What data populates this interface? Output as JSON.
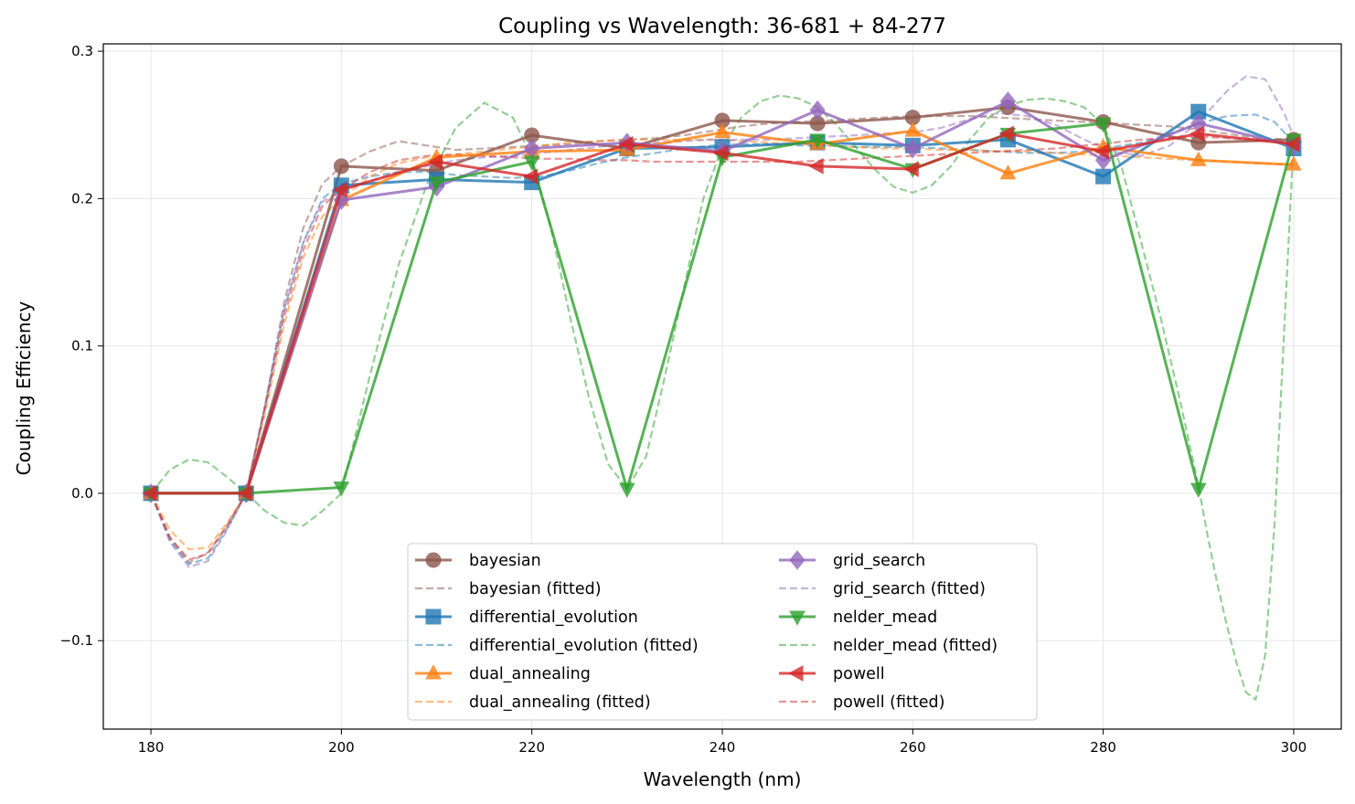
{
  "chart_data": {
    "type": "line",
    "title": "Coupling vs Wavelength: 36-681 + 84-277",
    "xlabel": "Wavelength (nm)",
    "ylabel": "Coupling Efficiency",
    "xlim": [
      175,
      305
    ],
    "ylim": [
      -0.16,
      0.305
    ],
    "xticks": [
      180,
      200,
      220,
      240,
      260,
      280,
      300
    ],
    "xtick_labels": [
      "180",
      "200",
      "220",
      "240",
      "260",
      "280",
      "300"
    ],
    "yticks": [
      -0.1,
      0.0,
      0.1,
      0.2,
      0.3
    ],
    "ytick_labels": [
      "−0.1",
      "0.0",
      "0.1",
      "0.2",
      "0.3"
    ],
    "grid": true,
    "legend_position": "lower-center",
    "x": [
      180,
      190,
      200,
      210,
      220,
      230,
      240,
      250,
      260,
      270,
      280,
      290,
      300
    ],
    "series": [
      {
        "name": "bayesian",
        "color": "#8c564b",
        "marker": "circle",
        "values": [
          0.0,
          0.0,
          0.222,
          0.219,
          0.243,
          0.234,
          0.253,
          0.251,
          0.255,
          0.262,
          0.252,
          0.238,
          0.24
        ]
      },
      {
        "name": "differential_evolution",
        "color": "#1f77b4",
        "marker": "square",
        "values": [
          0.0,
          0.0,
          0.209,
          0.213,
          0.211,
          0.234,
          0.235,
          0.238,
          0.236,
          0.24,
          0.215,
          0.259,
          0.234
        ]
      },
      {
        "name": "dual_annealing",
        "color": "#ff7f0e",
        "marker": "triangle-up",
        "values": [
          0.0,
          0.0,
          0.199,
          0.228,
          0.232,
          0.233,
          0.245,
          0.237,
          0.246,
          0.217,
          0.235,
          0.226,
          0.223
        ]
      },
      {
        "name": "grid_search",
        "color": "#9467bd",
        "marker": "diamond",
        "values": [
          0.0,
          0.0,
          0.199,
          0.208,
          0.234,
          0.238,
          0.232,
          0.26,
          0.234,
          0.266,
          0.226,
          0.251,
          0.236
        ]
      },
      {
        "name": "nelder_mead",
        "color": "#2ca02c",
        "marker": "triangle-down",
        "values": [
          0.0,
          0.0,
          0.004,
          0.211,
          0.225,
          0.003,
          0.228,
          0.24,
          0.22,
          0.244,
          0.251,
          0.003,
          0.24
        ]
      },
      {
        "name": "powell",
        "color": "#d62728",
        "marker": "triangle-left",
        "values": [
          0.0,
          0.0,
          0.206,
          0.225,
          0.215,
          0.237,
          0.231,
          0.222,
          0.22,
          0.244,
          0.232,
          0.244,
          0.237
        ]
      }
    ],
    "fitted_series": [
      {
        "name": "bayesian (fitted)",
        "color": "#8c564b",
        "x": [
          180,
          182,
          184,
          186,
          188,
          190,
          192,
          194,
          196,
          198,
          200,
          203,
          206,
          209,
          212,
          215,
          218,
          221,
          224,
          227,
          230,
          233,
          236,
          239,
          242,
          245,
          248,
          251,
          254,
          257,
          260,
          263,
          266,
          269,
          272,
          275,
          278,
          281,
          284,
          287,
          290,
          293,
          296,
          300
        ],
        "y": [
          0.0,
          -0.03,
          -0.047,
          -0.04,
          -0.022,
          0.0,
          0.06,
          0.13,
          0.18,
          0.21,
          0.222,
          0.232,
          0.239,
          0.236,
          0.233,
          0.234,
          0.235,
          0.236,
          0.237,
          0.239,
          0.24,
          0.241,
          0.243,
          0.246,
          0.249,
          0.251,
          0.252,
          0.253,
          0.254,
          0.255,
          0.256,
          0.256,
          0.256,
          0.255,
          0.254,
          0.253,
          0.252,
          0.251,
          0.25,
          0.249,
          0.247,
          0.244,
          0.241,
          0.24
        ]
      },
      {
        "name": "differential_evolution (fitted)",
        "color": "#1f77b4",
        "x": [
          180,
          182,
          184,
          186,
          188,
          190,
          192,
          194,
          196,
          198,
          200,
          203,
          206,
          209,
          212,
          215,
          218,
          221,
          224,
          227,
          230,
          233,
          236,
          239,
          242,
          245,
          248,
          251,
          254,
          257,
          260,
          263,
          266,
          269,
          272,
          275,
          278,
          281,
          284,
          287,
          290,
          293,
          296,
          298,
          300
        ],
        "y": [
          0.0,
          -0.032,
          -0.048,
          -0.044,
          -0.024,
          0.0,
          0.06,
          0.125,
          0.17,
          0.2,
          0.21,
          0.215,
          0.218,
          0.218,
          0.216,
          0.215,
          0.214,
          0.215,
          0.219,
          0.224,
          0.228,
          0.231,
          0.234,
          0.236,
          0.237,
          0.237,
          0.236,
          0.236,
          0.235,
          0.235,
          0.235,
          0.234,
          0.233,
          0.232,
          0.231,
          0.231,
          0.232,
          0.235,
          0.238,
          0.244,
          0.251,
          0.256,
          0.257,
          0.252,
          0.238
        ]
      },
      {
        "name": "dual_annealing (fitted)",
        "color": "#ff7f0e",
        "x": [
          180,
          182,
          184,
          186,
          188,
          190,
          192,
          194,
          196,
          198,
          200,
          203,
          206,
          209,
          212,
          215,
          218,
          221,
          224,
          227,
          230,
          233,
          236,
          239,
          242,
          245,
          248,
          251,
          254,
          257,
          260,
          263,
          266,
          269,
          272,
          275,
          278,
          281,
          284,
          287,
          290,
          293,
          296,
          300
        ],
        "y": [
          0.0,
          -0.025,
          -0.038,
          -0.037,
          -0.02,
          0.0,
          0.055,
          0.115,
          0.16,
          0.188,
          0.2,
          0.215,
          0.224,
          0.228,
          0.23,
          0.232,
          0.234,
          0.236,
          0.238,
          0.239,
          0.24,
          0.24,
          0.24,
          0.24,
          0.239,
          0.238,
          0.237,
          0.236,
          0.235,
          0.234,
          0.234,
          0.233,
          0.233,
          0.232,
          0.232,
          0.231,
          0.23,
          0.229,
          0.228,
          0.227,
          0.226,
          0.225,
          0.224,
          0.223
        ]
      },
      {
        "name": "grid_search (fitted)",
        "color": "#9467bd",
        "x": [
          180,
          182,
          184,
          186,
          188,
          190,
          192,
          194,
          196,
          198,
          200,
          203,
          206,
          209,
          212,
          215,
          218,
          221,
          224,
          227,
          230,
          233,
          236,
          239,
          242,
          245,
          248,
          251,
          254,
          257,
          260,
          263,
          266,
          269,
          272,
          275,
          278,
          281,
          284,
          287,
          290,
          293,
          295,
          297,
          299,
          300
        ],
        "y": [
          0.0,
          -0.033,
          -0.05,
          -0.046,
          -0.025,
          0.0,
          0.06,
          0.125,
          0.17,
          0.198,
          0.205,
          0.212,
          0.218,
          0.222,
          0.226,
          0.228,
          0.229,
          0.231,
          0.233,
          0.235,
          0.237,
          0.238,
          0.239,
          0.24,
          0.24,
          0.24,
          0.241,
          0.242,
          0.243,
          0.244,
          0.245,
          0.248,
          0.254,
          0.258,
          0.256,
          0.25,
          0.24,
          0.232,
          0.229,
          0.236,
          0.252,
          0.273,
          0.283,
          0.281,
          0.258,
          0.242
        ]
      },
      {
        "name": "nelder_mead (fitted)",
        "color": "#2ca02c",
        "x": [
          180,
          182,
          184,
          186,
          188,
          190,
          192,
          194,
          196,
          198,
          200,
          203,
          206,
          209,
          212,
          215,
          218,
          220,
          222,
          224,
          226,
          228,
          230,
          232,
          234,
          236,
          238,
          240,
          242,
          244,
          246,
          248,
          250,
          252,
          254,
          256,
          258,
          260,
          262,
          264,
          266,
          268,
          270,
          272,
          274,
          276,
          278,
          280,
          282,
          284,
          286,
          288,
          290,
          291,
          292,
          293,
          294,
          295,
          296,
          297,
          298,
          299,
          300
        ],
        "y": [
          0.0,
          0.016,
          0.023,
          0.021,
          0.011,
          0.0,
          -0.012,
          -0.02,
          -0.022,
          -0.012,
          0.0,
          0.08,
          0.155,
          0.21,
          0.248,
          0.265,
          0.255,
          0.228,
          0.18,
          0.12,
          0.065,
          0.02,
          0.003,
          0.025,
          0.08,
          0.14,
          0.2,
          0.235,
          0.255,
          0.266,
          0.27,
          0.268,
          0.262,
          0.25,
          0.235,
          0.22,
          0.208,
          0.204,
          0.209,
          0.222,
          0.24,
          0.255,
          0.263,
          0.267,
          0.268,
          0.266,
          0.262,
          0.25,
          0.22,
          0.17,
          0.12,
          0.065,
          0.005,
          -0.03,
          -0.062,
          -0.09,
          -0.115,
          -0.135,
          -0.14,
          -0.11,
          -0.02,
          0.11,
          0.24
        ]
      },
      {
        "name": "powell (fitted)",
        "color": "#d62728",
        "x": [
          180,
          182,
          184,
          186,
          188,
          190,
          192,
          194,
          196,
          198,
          200,
          203,
          206,
          209,
          212,
          215,
          218,
          221,
          224,
          227,
          230,
          233,
          236,
          239,
          242,
          245,
          248,
          251,
          254,
          257,
          260,
          263,
          266,
          269,
          272,
          275,
          278,
          281,
          284,
          287,
          290,
          293,
          296,
          300
        ],
        "y": [
          0.0,
          -0.03,
          -0.045,
          -0.041,
          -0.022,
          0.0,
          0.058,
          0.12,
          0.165,
          0.195,
          0.206,
          0.218,
          0.226,
          0.229,
          0.23,
          0.229,
          0.228,
          0.227,
          0.227,
          0.226,
          0.226,
          0.225,
          0.225,
          0.225,
          0.225,
          0.225,
          0.225,
          0.226,
          0.227,
          0.228,
          0.229,
          0.23,
          0.231,
          0.232,
          0.233,
          0.234,
          0.236,
          0.238,
          0.24,
          0.241,
          0.242,
          0.241,
          0.24,
          0.238
        ]
      }
    ],
    "legend_entries": [
      "bayesian",
      "bayesian (fitted)",
      "differential_evolution",
      "differential_evolution (fitted)",
      "dual_annealing",
      "dual_annealing (fitted)",
      "grid_search",
      "grid_search (fitted)",
      "nelder_mead",
      "nelder_mead (fitted)",
      "powell",
      "powell (fitted)"
    ]
  }
}
